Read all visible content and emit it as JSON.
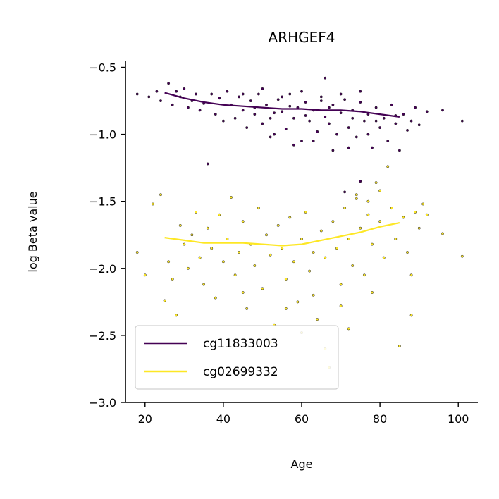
{
  "chart_data": {
    "type": "scatter",
    "title": "ARHGEF4",
    "xlabel": "Age",
    "ylabel": "log Beta value",
    "xlim": [
      15,
      105
    ],
    "ylim": [
      -3.0,
      -0.45
    ],
    "x_ticks": [
      20,
      40,
      60,
      80,
      100
    ],
    "x_tick_labels": [
      "20",
      "40",
      "60",
      "80",
      "100"
    ],
    "y_ticks": [
      -0.5,
      -1.0,
      -1.5,
      -2.0,
      -2.5,
      -3.0
    ],
    "y_tick_labels": [
      "−0.5",
      "−1.0",
      "−1.5",
      "−2.0",
      "−2.5",
      "−3.0"
    ],
    "grid": false,
    "legend_position": "lower-left",
    "series": [
      {
        "name": "cg11833003",
        "color": "#440154",
        "points": [
          [
            18,
            -0.7
          ],
          [
            21,
            -0.72
          ],
          [
            23,
            -0.68
          ],
          [
            24,
            -0.75
          ],
          [
            26,
            -0.62
          ],
          [
            27,
            -0.78
          ],
          [
            28,
            -0.68
          ],
          [
            29,
            -0.72
          ],
          [
            30,
            -0.66
          ],
          [
            31,
            -0.8
          ],
          [
            32,
            -0.75
          ],
          [
            33,
            -0.7
          ],
          [
            34,
            -0.82
          ],
          [
            35,
            -0.77
          ],
          [
            36,
            -1.22
          ],
          [
            37,
            -0.7
          ],
          [
            38,
            -0.85
          ],
          [
            39,
            -0.73
          ],
          [
            40,
            -0.9
          ],
          [
            41,
            -0.68
          ],
          [
            42,
            -0.78
          ],
          [
            43,
            -0.88
          ],
          [
            44,
            -0.72
          ],
          [
            45,
            -0.82
          ],
          [
            46,
            -0.95
          ],
          [
            47,
            -0.75
          ],
          [
            48,
            -0.85
          ],
          [
            49,
            -0.7
          ],
          [
            50,
            -0.92
          ],
          [
            51,
            -0.78
          ],
          [
            52,
            -0.88
          ],
          [
            53,
            -1.0
          ],
          [
            54,
            -0.74
          ],
          [
            55,
            -0.83
          ],
          [
            56,
            -0.96
          ],
          [
            57,
            -0.7
          ],
          [
            58,
            -0.88
          ],
          [
            59,
            -0.8
          ],
          [
            60,
            -1.05
          ],
          [
            61,
            -0.76
          ],
          [
            62,
            -0.9
          ],
          [
            63,
            -0.82
          ],
          [
            64,
            -0.98
          ],
          [
            65,
            -0.72
          ],
          [
            66,
            -0.87
          ],
          [
            67,
            -0.92
          ],
          [
            68,
            -0.78
          ],
          [
            69,
            -1.0
          ],
          [
            70,
            -0.84
          ],
          [
            71,
            -0.74
          ],
          [
            72,
            -0.95
          ],
          [
            73,
            -0.82
          ],
          [
            74,
            -1.02
          ],
          [
            75,
            -0.76
          ],
          [
            76,
            -0.9
          ],
          [
            77,
            -0.85
          ],
          [
            78,
            -1.1
          ],
          [
            79,
            -0.8
          ],
          [
            80,
            -0.95
          ],
          [
            81,
            -0.88
          ],
          [
            82,
            -1.05
          ],
          [
            83,
            -0.78
          ],
          [
            84,
            -0.92
          ],
          [
            85,
            -1.12
          ],
          [
            86,
            -0.85
          ],
          [
            87,
            -0.97
          ],
          [
            88,
            -0.9
          ],
          [
            89,
            -0.8
          ],
          [
            90,
            -0.93
          ],
          [
            92,
            -0.83
          ],
          [
            96,
            -0.82
          ],
          [
            101,
            -0.9
          ],
          [
            45,
            -0.7
          ],
          [
            50,
            -0.66
          ],
          [
            55,
            -0.72
          ],
          [
            60,
            -0.68
          ],
          [
            65,
            -0.75
          ],
          [
            66,
            -0.58
          ],
          [
            70,
            -0.7
          ],
          [
            75,
            -0.68
          ],
          [
            52,
            -1.02
          ],
          [
            58,
            -1.08
          ],
          [
            63,
            -1.05
          ],
          [
            68,
            -1.12
          ],
          [
            72,
            -1.1
          ],
          [
            77,
            -1.0
          ],
          [
            71,
            -1.43
          ],
          [
            75,
            -1.35
          ],
          [
            48,
            -0.8
          ],
          [
            53,
            -0.84
          ],
          [
            57,
            -0.79
          ],
          [
            61,
            -0.86
          ],
          [
            67,
            -0.8
          ],
          [
            73,
            -0.88
          ],
          [
            79,
            -0.9
          ],
          [
            84,
            -0.86
          ]
        ]
      },
      {
        "name": "cg02699332",
        "color": "#fde725",
        "points": [
          [
            18,
            -1.88
          ],
          [
            20,
            -2.05
          ],
          [
            22,
            -1.52
          ],
          [
            24,
            -1.45
          ],
          [
            25,
            -2.24
          ],
          [
            26,
            -1.95
          ],
          [
            27,
            -2.08
          ],
          [
            28,
            -2.35
          ],
          [
            29,
            -1.68
          ],
          [
            30,
            -1.82
          ],
          [
            31,
            -2.0
          ],
          [
            32,
            -1.75
          ],
          [
            33,
            -1.58
          ],
          [
            34,
            -1.92
          ],
          [
            35,
            -2.12
          ],
          [
            36,
            -1.7
          ],
          [
            37,
            -1.85
          ],
          [
            38,
            -2.22
          ],
          [
            39,
            -1.6
          ],
          [
            40,
            -1.95
          ],
          [
            41,
            -1.78
          ],
          [
            42,
            -1.47
          ],
          [
            43,
            -2.05
          ],
          [
            44,
            -1.88
          ],
          [
            45,
            -1.65
          ],
          [
            46,
            -2.3
          ],
          [
            47,
            -1.82
          ],
          [
            48,
            -1.98
          ],
          [
            49,
            -1.55
          ],
          [
            50,
            -2.15
          ],
          [
            51,
            -1.75
          ],
          [
            52,
            -1.9
          ],
          [
            53,
            -2.42
          ],
          [
            54,
            -1.68
          ],
          [
            55,
            -1.85
          ],
          [
            56,
            -2.08
          ],
          [
            57,
            -1.62
          ],
          [
            58,
            -1.95
          ],
          [
            59,
            -2.25
          ],
          [
            60,
            -1.78
          ],
          [
            61,
            -1.58
          ],
          [
            62,
            -2.02
          ],
          [
            63,
            -1.88
          ],
          [
            64,
            -2.38
          ],
          [
            65,
            -1.72
          ],
          [
            66,
            -1.92
          ],
          [
            67,
            -2.74
          ],
          [
            68,
            -1.65
          ],
          [
            69,
            -1.85
          ],
          [
            70,
            -2.12
          ],
          [
            71,
            -1.55
          ],
          [
            72,
            -1.78
          ],
          [
            73,
            -1.98
          ],
          [
            74,
            -1.45
          ],
          [
            75,
            -1.7
          ],
          [
            76,
            -2.05
          ],
          [
            77,
            -1.6
          ],
          [
            78,
            -1.82
          ],
          [
            79,
            -1.36
          ],
          [
            80,
            -1.65
          ],
          [
            81,
            -1.92
          ],
          [
            82,
            -1.24
          ],
          [
            83,
            -1.55
          ],
          [
            84,
            -1.78
          ],
          [
            85,
            -2.58
          ],
          [
            86,
            -1.62
          ],
          [
            87,
            -1.88
          ],
          [
            88,
            -2.05
          ],
          [
            89,
            -1.58
          ],
          [
            90,
            -1.7
          ],
          [
            91,
            -1.52
          ],
          [
            92,
            -1.6
          ],
          [
            96,
            -1.74
          ],
          [
            101,
            -1.91
          ],
          [
            52,
            -2.55
          ],
          [
            60,
            -2.48
          ],
          [
            66,
            -2.6
          ],
          [
            72,
            -2.45
          ],
          [
            45,
            -2.18
          ],
          [
            56,
            -2.3
          ],
          [
            63,
            -2.2
          ],
          [
            70,
            -2.28
          ],
          [
            78,
            -2.18
          ],
          [
            88,
            -2.35
          ],
          [
            74,
            -1.48
          ],
          [
            80,
            -1.42
          ],
          [
            77,
            -1.5
          ]
        ]
      }
    ],
    "trend_lines": [
      {
        "name": "cg11833003",
        "x": [
          25,
          30,
          35,
          40,
          45,
          50,
          55,
          60,
          65,
          70,
          75,
          80,
          85
        ],
        "y": [
          -0.69,
          -0.73,
          -0.76,
          -0.78,
          -0.79,
          -0.8,
          -0.81,
          -0.81,
          -0.82,
          -0.82,
          -0.83,
          -0.85,
          -0.87
        ]
      },
      {
        "name": "cg02699332",
        "x": [
          25,
          30,
          35,
          40,
          45,
          50,
          55,
          60,
          65,
          70,
          75,
          80,
          85
        ],
        "y": [
          -1.77,
          -1.79,
          -1.81,
          -1.81,
          -1.81,
          -1.82,
          -1.83,
          -1.82,
          -1.79,
          -1.76,
          -1.73,
          -1.69,
          -1.66
        ]
      }
    ]
  }
}
